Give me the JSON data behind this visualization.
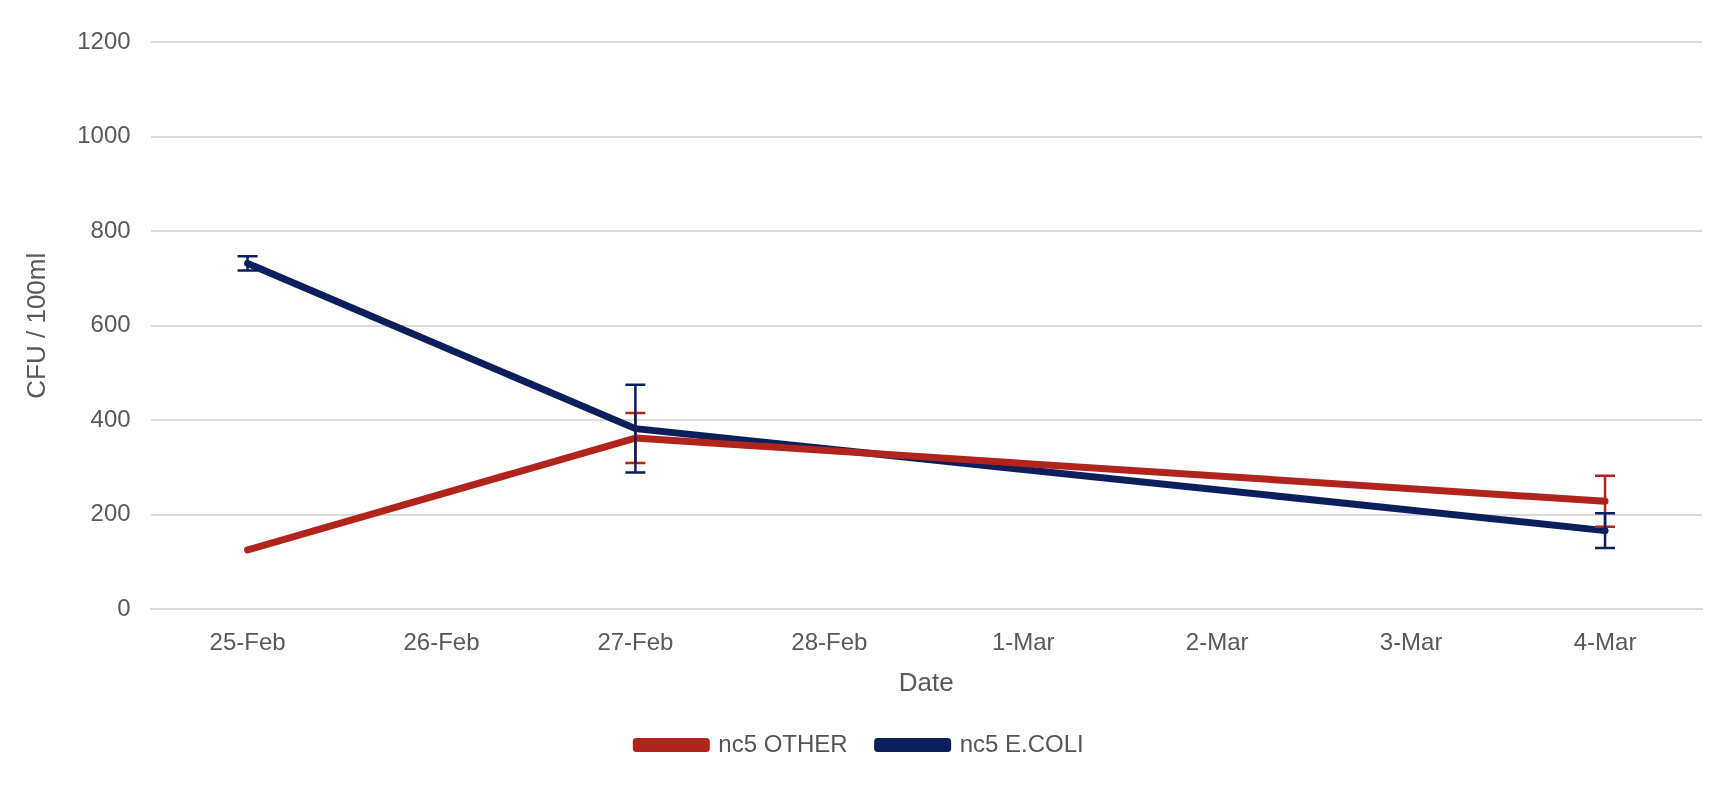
{
  "chart_data": {
    "type": "line",
    "xlabel": "Date",
    "ylabel": "CFU / 100ml",
    "categories": [
      "25-Feb",
      "26-Feb",
      "27-Feb",
      "28-Feb",
      "1-Mar",
      "2-Mar",
      "3-Mar",
      "4-Mar"
    ],
    "series": [
      {
        "name": "nc5 OTHER",
        "color": "#b0241b",
        "values": [
          125,
          null,
          362,
          null,
          null,
          null,
          null,
          228
        ],
        "errors": [
          null,
          null,
          53,
          null,
          null,
          null,
          null,
          54
        ]
      },
      {
        "name": "nc5 E.COLI",
        "color": "#0a1f5c",
        "values": [
          732,
          null,
          382,
          null,
          null,
          null,
          null,
          166
        ],
        "errors": [
          15,
          null,
          93,
          null,
          null,
          null,
          null,
          37
        ]
      }
    ],
    "ylim": [
      0,
      1200
    ],
    "yticks": [
      0,
      200,
      400,
      600,
      800,
      1000,
      1200
    ],
    "grid": "y",
    "legend": "bottom",
    "marker": "none",
    "line_style": "solid"
  }
}
